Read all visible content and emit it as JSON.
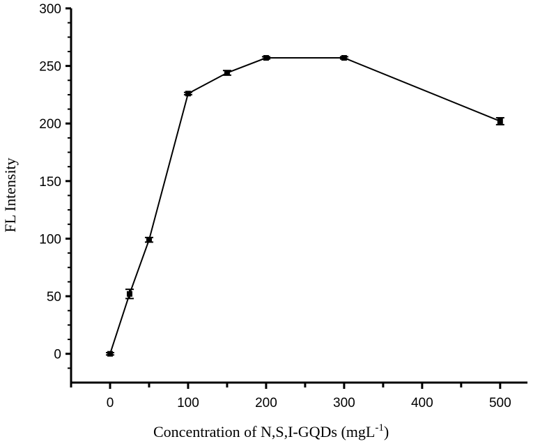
{
  "chart_data": {
    "type": "line",
    "title": "",
    "xlabel": "Concentration of  N,S,I-GQDs (mgL",
    "xlabel_superscript": "-1",
    "xlabel_suffix": ")",
    "ylabel": "FL Intensity",
    "xlim": [
      -50,
      535
    ],
    "ylim": [
      -25,
      300
    ],
    "xticks": [
      0,
      100,
      200,
      300,
      400,
      500
    ],
    "xticks_minor": [
      -50,
      50,
      150,
      250,
      350,
      450
    ],
    "yticks": [
      0,
      50,
      100,
      150,
      200,
      250,
      300
    ],
    "grid": false,
    "series": [
      {
        "x": [
          0,
          25,
          50,
          100,
          150,
          200,
          300,
          500
        ],
        "y": [
          0,
          52,
          99,
          226,
          244,
          257,
          257,
          202
        ],
        "error": [
          1,
          4,
          2,
          1,
          2,
          1,
          1,
          3
        ],
        "color": "#000000",
        "marker": "square"
      }
    ]
  }
}
